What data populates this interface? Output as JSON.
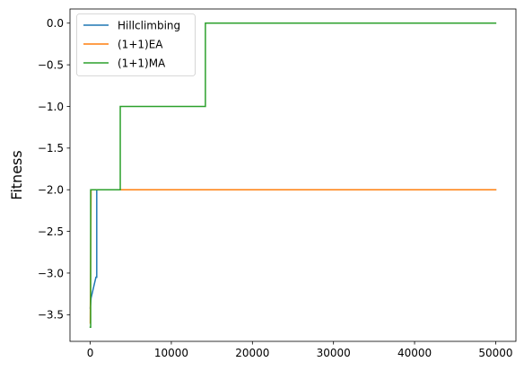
{
  "chart_data": {
    "type": "line",
    "title": "",
    "xlabel": "",
    "ylabel": "Fitness",
    "xlim": [
      -2500,
      52500
    ],
    "ylim": [
      -3.82,
      0.17
    ],
    "xticks": [
      0,
      10000,
      20000,
      30000,
      40000,
      50000
    ],
    "xtick_labels": [
      "0",
      "10000",
      "20000",
      "30000",
      "40000",
      "50000"
    ],
    "yticks": [
      0.0,
      -0.5,
      -1.0,
      -1.5,
      -2.0,
      -2.5,
      -3.0,
      -3.5
    ],
    "ytick_labels": [
      "0.0",
      "−0.5",
      "−1.0",
      "−1.5",
      "−2.0",
      "−2.5",
      "−3.0",
      "−3.5"
    ],
    "grid": false,
    "legend_position": "top-left",
    "series": [
      {
        "name": "Hillclimbing",
        "color": "#1f77b4",
        "x": [
          0,
          100,
          700,
          800,
          800,
          50000
        ],
        "y": [
          -3.42,
          -3.3,
          -3.05,
          -3.05,
          -2.0,
          -2.0
        ]
      },
      {
        "name": "(1+1)EA",
        "color": "#ff7f0e",
        "x": [
          0,
          100,
          150,
          50000
        ],
        "y": [
          -3.6,
          -2.0,
          -2.0,
          -2.0
        ]
      },
      {
        "name": "(1+1)MA",
        "color": "#2ca02c",
        "x": [
          0,
          50,
          50,
          3700,
          3700,
          14200,
          14200,
          50000
        ],
        "y": [
          -3.65,
          -3.65,
          -2.0,
          -2.0,
          -1.0,
          -1.0,
          0.0,
          0.0
        ]
      }
    ]
  }
}
